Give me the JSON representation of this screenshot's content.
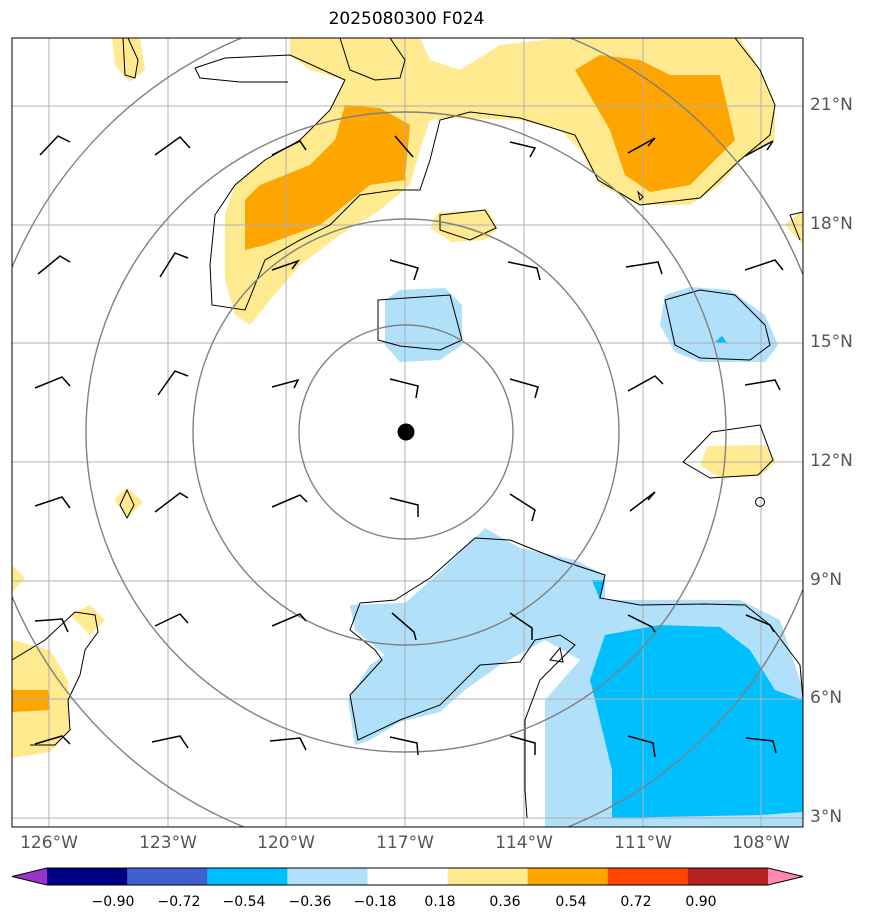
{
  "title": "2025080300 F024",
  "lat_labels": [
    "21°N",
    "18°N",
    "15°N",
    "12°N",
    "9°N",
    "6°N",
    "3°N"
  ],
  "lon_labels": [
    "126°W",
    "123°W",
    "120°W",
    "117°W",
    "114°W",
    "111°W",
    "108°W"
  ],
  "colorbar": {
    "labels": [
      "−0.90",
      "−0.72",
      "−0.54",
      "−0.36",
      "−0.18",
      "0.18",
      "0.36",
      "0.54",
      "0.72",
      "0.90"
    ],
    "colors": [
      "#9933cc",
      "#000080",
      "#3f5fcf",
      "#00bfff",
      "#b0e0fa",
      "#ffffff",
      "#ffea8f",
      "#ffa500",
      "#ff4500",
      "#b22222",
      "#ff88b0"
    ]
  },
  "colors": {
    "grid": "#b0b0b0",
    "range_ring": "#808080",
    "contour": "#000000",
    "light_blue": "#b0e0fa",
    "blue": "#00bfff",
    "light_yellow": "#ffea8f",
    "orange": "#ffa500"
  },
  "center_marker": {
    "lon": -116.9,
    "lat": 12.8,
    "label_icon": "storm-center-dot"
  }
}
